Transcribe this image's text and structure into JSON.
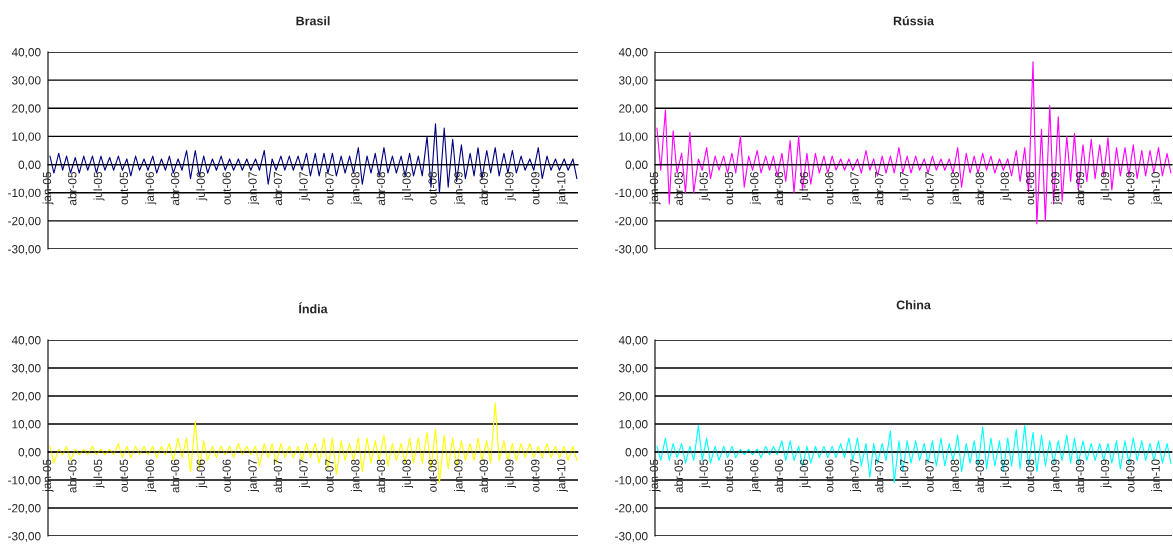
{
  "chart_data": [
    {
      "type": "line",
      "title": "Brasil",
      "ylim": [
        -30,
        40
      ],
      "grid": "y",
      "yticks": [
        {
          "value": -30,
          "label": "-30,00"
        },
        {
          "value": -20,
          "label": "-20,00"
        },
        {
          "value": -10,
          "label": "-10,00"
        },
        {
          "value": 0,
          "label": "0,00"
        },
        {
          "value": 10,
          "label": "10,00"
        },
        {
          "value": 20,
          "label": "20,00"
        },
        {
          "value": 30,
          "label": "30,00"
        },
        {
          "value": 40,
          "label": "40,00"
        }
      ],
      "xlim": [
        "2005-01-01",
        "2010-02-26"
      ],
      "xticks": [
        {
          "value": "2005-01-01",
          "label": "jan-05"
        },
        {
          "value": "2005-04-01",
          "label": "abr-05"
        },
        {
          "value": "2005-07-01",
          "label": "jul-05"
        },
        {
          "value": "2005-10-01",
          "label": "out-05"
        },
        {
          "value": "2006-01-01",
          "label": "jan-06"
        },
        {
          "value": "2006-04-01",
          "label": "abr-06"
        },
        {
          "value": "2006-07-01",
          "label": "jul-06"
        },
        {
          "value": "2006-10-01",
          "label": "out-06"
        },
        {
          "value": "2007-01-01",
          "label": "jan-07"
        },
        {
          "value": "2007-04-01",
          "label": "abr-07"
        },
        {
          "value": "2007-07-01",
          "label": "jul-07"
        },
        {
          "value": "2007-10-01",
          "label": "out-07"
        },
        {
          "value": "2008-01-01",
          "label": "jan-08"
        },
        {
          "value": "2008-04-01",
          "label": "abr-08"
        },
        {
          "value": "2008-07-01",
          "label": "jul-08"
        },
        {
          "value": "2008-10-01",
          "label": "out-08"
        },
        {
          "value": "2009-01-01",
          "label": "jan-09"
        },
        {
          "value": "2009-04-01",
          "label": "abr-09"
        },
        {
          "value": "2009-07-01",
          "label": "jul-09"
        },
        {
          "value": "2009-10-01",
          "label": "out-09"
        },
        {
          "value": "2010-01-01",
          "label": "jan-10"
        }
      ],
      "x": [
        "2005-01-08",
        "2005-01-22",
        "2005-02-08",
        "2005-02-22",
        "2005-03-08",
        "2005-03-22",
        "2005-04-08",
        "2005-04-22",
        "2005-05-08",
        "2005-05-22",
        "2005-06-08",
        "2005-06-22",
        "2005-07-08",
        "2005-07-22",
        "2005-08-08",
        "2005-08-22",
        "2005-09-08",
        "2005-09-22",
        "2005-10-08",
        "2005-10-22",
        "2005-11-08",
        "2005-11-22",
        "2005-12-08",
        "2005-12-22",
        "2006-01-08",
        "2006-01-22",
        "2006-02-08",
        "2006-02-22",
        "2006-03-08",
        "2006-03-22",
        "2006-04-08",
        "2006-04-22",
        "2006-05-08",
        "2006-05-22",
        "2006-06-08",
        "2006-06-22",
        "2006-07-08",
        "2006-07-22",
        "2006-08-08",
        "2006-08-22",
        "2006-09-08",
        "2006-09-22",
        "2006-10-08",
        "2006-10-22",
        "2006-11-08",
        "2006-11-22",
        "2006-12-08",
        "2006-12-22",
        "2007-01-08",
        "2007-01-22",
        "2007-02-08",
        "2007-02-22",
        "2007-03-08",
        "2007-03-22",
        "2007-04-08",
        "2007-04-22",
        "2007-05-08",
        "2007-05-22",
        "2007-06-08",
        "2007-06-22",
        "2007-07-08",
        "2007-07-22",
        "2007-08-08",
        "2007-08-22",
        "2007-09-08",
        "2007-09-22",
        "2007-10-08",
        "2007-10-22",
        "2007-11-08",
        "2007-11-22",
        "2007-12-08",
        "2007-12-22",
        "2008-01-08",
        "2008-01-22",
        "2008-02-08",
        "2008-02-22",
        "2008-03-08",
        "2008-03-22",
        "2008-04-08",
        "2008-04-22",
        "2008-05-08",
        "2008-05-22",
        "2008-06-08",
        "2008-06-22",
        "2008-07-08",
        "2008-07-22",
        "2008-08-08",
        "2008-08-22",
        "2008-09-08",
        "2008-09-22",
        "2008-10-08",
        "2008-10-22",
        "2008-11-08",
        "2008-11-22",
        "2008-12-08",
        "2008-12-22",
        "2009-01-08",
        "2009-01-22",
        "2009-02-08",
        "2009-02-22",
        "2009-03-08",
        "2009-03-22",
        "2009-04-08",
        "2009-04-22",
        "2009-05-08",
        "2009-05-22",
        "2009-06-08",
        "2009-06-22",
        "2009-07-08",
        "2009-07-22",
        "2009-08-08",
        "2009-08-22",
        "2009-09-08",
        "2009-09-22",
        "2009-10-08",
        "2009-10-22",
        "2009-11-08",
        "2009-11-22",
        "2009-12-08",
        "2009-12-22",
        "2010-01-08",
        "2010-01-22",
        "2010-02-08",
        "2010-02-22"
      ],
      "series": [
        {
          "color": "#000080",
          "values": [
            3,
            -3,
            4,
            -2,
            3,
            -3,
            2.5,
            -3,
            3,
            -2,
            3,
            -3,
            3,
            -2,
            2.5,
            -2,
            3,
            -2,
            2,
            -4,
            3,
            -2,
            2,
            -2,
            3,
            -3,
            2,
            -2,
            3,
            -3,
            2,
            -2,
            5,
            -5,
            5,
            -4,
            3,
            -3,
            2,
            -2,
            3,
            -2,
            2,
            -2,
            2,
            -2,
            2,
            -2,
            2,
            -2,
            5,
            -7,
            2,
            -2,
            3,
            -2,
            3,
            -2,
            3,
            -2,
            4,
            -4,
            4,
            -4,
            4,
            -3,
            4,
            -4,
            3,
            -3,
            3,
            -3,
            6,
            -7,
            3,
            -3,
            4,
            -4,
            6,
            -3,
            3,
            -3,
            3,
            -4,
            4,
            -4,
            3,
            -4,
            10,
            -8,
            14.5,
            -10,
            13,
            -8,
            9,
            -6,
            7,
            -5,
            4,
            -4,
            6,
            -5,
            5,
            -3,
            6,
            -4,
            4,
            -3,
            5,
            -3,
            3,
            -2,
            2,
            -2,
            6,
            -5,
            3,
            -2,
            2,
            -2,
            2,
            -2,
            2,
            -5
          ]
        }
      ]
    },
    {
      "type": "line",
      "title": "Rússia",
      "ylim": [
        -30,
        40
      ],
      "grid": "y",
      "yticks": [
        {
          "value": -30,
          "label": "-30,00"
        },
        {
          "value": -20,
          "label": "-20,00"
        },
        {
          "value": -10,
          "label": "-10,00"
        },
        {
          "value": 0,
          "label": "0,00"
        },
        {
          "value": 10,
          "label": "10,00"
        },
        {
          "value": 20,
          "label": "20,00"
        },
        {
          "value": 30,
          "label": "30,00"
        },
        {
          "value": 40,
          "label": "40,00"
        }
      ],
      "xlim": [
        "2005-01-01",
        "2010-02-26"
      ],
      "xticks": [
        {
          "value": "2005-01-01",
          "label": "jan-05"
        },
        {
          "value": "2005-04-01",
          "label": "abr-05"
        },
        {
          "value": "2005-07-01",
          "label": "jul-05"
        },
        {
          "value": "2005-10-01",
          "label": "out-05"
        },
        {
          "value": "2006-01-01",
          "label": "jan-06"
        },
        {
          "value": "2006-04-01",
          "label": "abr-06"
        },
        {
          "value": "2006-07-01",
          "label": "jul-06"
        },
        {
          "value": "2006-10-01",
          "label": "out-06"
        },
        {
          "value": "2007-01-01",
          "label": "jan-07"
        },
        {
          "value": "2007-04-01",
          "label": "abr-07"
        },
        {
          "value": "2007-07-01",
          "label": "jul-07"
        },
        {
          "value": "2007-10-01",
          "label": "out-07"
        },
        {
          "value": "2008-01-01",
          "label": "jan-08"
        },
        {
          "value": "2008-04-01",
          "label": "abr-08"
        },
        {
          "value": "2008-07-01",
          "label": "jul-08"
        },
        {
          "value": "2008-10-01",
          "label": "out-08"
        },
        {
          "value": "2009-01-01",
          "label": "jan-09"
        },
        {
          "value": "2009-04-01",
          "label": "abr-09"
        },
        {
          "value": "2009-07-01",
          "label": "jul-09"
        },
        {
          "value": "2009-10-01",
          "label": "out-09"
        },
        {
          "value": "2010-01-01",
          "label": "jan-10"
        }
      ],
      "x": [
        "2005-01-08",
        "2005-01-22",
        "2005-02-08",
        "2005-02-22",
        "2005-03-08",
        "2005-03-22",
        "2005-04-08",
        "2005-04-22",
        "2005-05-08",
        "2005-05-22",
        "2005-06-08",
        "2005-06-22",
        "2005-07-08",
        "2005-07-22",
        "2005-08-08",
        "2005-08-22",
        "2005-09-08",
        "2005-09-22",
        "2005-10-08",
        "2005-10-22",
        "2005-11-08",
        "2005-11-22",
        "2005-12-08",
        "2005-12-22",
        "2006-01-08",
        "2006-01-22",
        "2006-02-08",
        "2006-02-22",
        "2006-03-08",
        "2006-03-22",
        "2006-04-08",
        "2006-04-22",
        "2006-05-08",
        "2006-05-22",
        "2006-06-08",
        "2006-06-22",
        "2006-07-08",
        "2006-07-22",
        "2006-08-08",
        "2006-08-22",
        "2006-09-08",
        "2006-09-22",
        "2006-10-08",
        "2006-10-22",
        "2006-11-08",
        "2006-11-22",
        "2006-12-08",
        "2006-12-22",
        "2007-01-08",
        "2007-01-22",
        "2007-02-08",
        "2007-02-22",
        "2007-03-08",
        "2007-03-22",
        "2007-04-08",
        "2007-04-22",
        "2007-05-08",
        "2007-05-22",
        "2007-06-08",
        "2007-06-22",
        "2007-07-08",
        "2007-07-22",
        "2007-08-08",
        "2007-08-22",
        "2007-09-08",
        "2007-09-22",
        "2007-10-08",
        "2007-10-22",
        "2007-11-08",
        "2007-11-22",
        "2007-12-08",
        "2007-12-22",
        "2008-01-08",
        "2008-01-22",
        "2008-02-08",
        "2008-02-22",
        "2008-03-08",
        "2008-03-22",
        "2008-04-08",
        "2008-04-22",
        "2008-05-08",
        "2008-05-22",
        "2008-06-08",
        "2008-06-22",
        "2008-07-08",
        "2008-07-22",
        "2008-08-08",
        "2008-08-22",
        "2008-09-08",
        "2008-09-22",
        "2008-10-08",
        "2008-10-22",
        "2008-11-08",
        "2008-11-22",
        "2008-12-08",
        "2008-12-22",
        "2009-01-08",
        "2009-01-22",
        "2009-02-08",
        "2009-02-22",
        "2009-03-08",
        "2009-03-22",
        "2009-04-08",
        "2009-04-22",
        "2009-05-08",
        "2009-05-22",
        "2009-06-08",
        "2009-06-22",
        "2009-07-08",
        "2009-07-22",
        "2009-08-08",
        "2009-08-22",
        "2009-09-08",
        "2009-09-22",
        "2009-10-08",
        "2009-10-22",
        "2009-11-08",
        "2009-11-22",
        "2009-12-08",
        "2009-12-22",
        "2010-01-08",
        "2010-01-22",
        "2010-02-08",
        "2010-02-22"
      ],
      "series": [
        {
          "color": "#ff00ff",
          "values": [
            13,
            -2,
            19.5,
            -14,
            12,
            -3,
            4,
            -10,
            11.5,
            -10,
            2,
            -2,
            6,
            -5,
            3,
            -2,
            3,
            -3,
            4,
            -3,
            10,
            -8,
            3,
            -2,
            5,
            -3,
            3,
            -2,
            3,
            -4,
            4,
            -6,
            8.5,
            -10,
            10,
            -9,
            4,
            -7,
            4,
            -3,
            3,
            -3,
            3,
            -2,
            2,
            -2,
            2,
            -2,
            2,
            -3,
            5,
            -2,
            2,
            -4,
            3,
            -3,
            3,
            -3,
            6,
            -3,
            3,
            -3,
            3,
            -2,
            2,
            -3,
            3,
            -2,
            2,
            -2,
            2,
            -3,
            6,
            -8,
            4,
            -3,
            3,
            -3,
            4,
            -2,
            3,
            -3,
            2,
            -2,
            2,
            -4,
            5,
            -6,
            6,
            -10,
            36.5,
            -21,
            12.5,
            -20,
            21,
            -14,
            17,
            -13,
            10,
            -6,
            11,
            -9,
            7,
            -6,
            9,
            -5,
            7,
            -4,
            9.5,
            -9,
            6,
            -4,
            6,
            -4,
            7,
            -5,
            5,
            -4,
            5,
            -3,
            6,
            -4,
            4,
            -3
          ]
        }
      ]
    },
    {
      "type": "line",
      "title": "Índia",
      "ylim": [
        -30,
        40
      ],
      "grid": "y",
      "yticks": [
        {
          "value": -30,
          "label": "-30,00"
        },
        {
          "value": -20,
          "label": "-20,00"
        },
        {
          "value": -10,
          "label": "-10,00"
        },
        {
          "value": 0,
          "label": "0,00"
        },
        {
          "value": 10,
          "label": "10,00"
        },
        {
          "value": 20,
          "label": "20,00"
        },
        {
          "value": 30,
          "label": "30,00"
        },
        {
          "value": 40,
          "label": "40,00"
        }
      ],
      "xlim": [
        "2005-01-01",
        "2010-02-26"
      ],
      "xticks": [
        {
          "value": "2005-01-01",
          "label": "jan-05"
        },
        {
          "value": "2005-04-01",
          "label": "abr-05"
        },
        {
          "value": "2005-07-01",
          "label": "jul-05"
        },
        {
          "value": "2005-10-01",
          "label": "out-05"
        },
        {
          "value": "2006-01-01",
          "label": "jan-06"
        },
        {
          "value": "2006-04-01",
          "label": "abr-06"
        },
        {
          "value": "2006-07-01",
          "label": "jul-06"
        },
        {
          "value": "2006-10-01",
          "label": "out-06"
        },
        {
          "value": "2007-01-01",
          "label": "jan-07"
        },
        {
          "value": "2007-04-01",
          "label": "abr-07"
        },
        {
          "value": "2007-07-01",
          "label": "jul-07"
        },
        {
          "value": "2007-10-01",
          "label": "out-07"
        },
        {
          "value": "2008-01-01",
          "label": "jan-08"
        },
        {
          "value": "2008-04-01",
          "label": "abr-08"
        },
        {
          "value": "2008-07-01",
          "label": "jul-08"
        },
        {
          "value": "2008-10-01",
          "label": "out-08"
        },
        {
          "value": "2009-01-01",
          "label": "jan-09"
        },
        {
          "value": "2009-04-01",
          "label": "abr-09"
        },
        {
          "value": "2009-07-01",
          "label": "jul-09"
        },
        {
          "value": "2009-10-01",
          "label": "out-09"
        },
        {
          "value": "2010-01-01",
          "label": "jan-10"
        }
      ],
      "x": [
        "2005-01-08",
        "2005-01-22",
        "2005-02-08",
        "2005-02-22",
        "2005-03-08",
        "2005-03-22",
        "2005-04-08",
        "2005-04-22",
        "2005-05-08",
        "2005-05-22",
        "2005-06-08",
        "2005-06-22",
        "2005-07-08",
        "2005-07-22",
        "2005-08-08",
        "2005-08-22",
        "2005-09-08",
        "2005-09-22",
        "2005-10-08",
        "2005-10-22",
        "2005-11-08",
        "2005-11-22",
        "2005-12-08",
        "2005-12-22",
        "2006-01-08",
        "2006-01-22",
        "2006-02-08",
        "2006-02-22",
        "2006-03-08",
        "2006-03-22",
        "2006-04-08",
        "2006-04-22",
        "2006-05-08",
        "2006-05-22",
        "2006-06-08",
        "2006-06-22",
        "2006-07-08",
        "2006-07-22",
        "2006-08-08",
        "2006-08-22",
        "2006-09-08",
        "2006-09-22",
        "2006-10-08",
        "2006-10-22",
        "2006-11-08",
        "2006-11-22",
        "2006-12-08",
        "2006-12-22",
        "2007-01-08",
        "2007-01-22",
        "2007-02-08",
        "2007-02-22",
        "2007-03-08",
        "2007-03-22",
        "2007-04-08",
        "2007-04-22",
        "2007-05-08",
        "2007-05-22",
        "2007-06-08",
        "2007-06-22",
        "2007-07-08",
        "2007-07-22",
        "2007-08-08",
        "2007-08-22",
        "2007-09-08",
        "2007-09-22",
        "2007-10-08",
        "2007-10-22",
        "2007-11-08",
        "2007-11-22",
        "2007-12-08",
        "2007-12-22",
        "2008-01-08",
        "2008-01-22",
        "2008-02-08",
        "2008-02-22",
        "2008-03-08",
        "2008-03-22",
        "2008-04-08",
        "2008-04-22",
        "2008-05-08",
        "2008-05-22",
        "2008-06-08",
        "2008-06-22",
        "2008-07-08",
        "2008-07-22",
        "2008-08-08",
        "2008-08-22",
        "2008-09-08",
        "2008-09-22",
        "2008-10-08",
        "2008-10-22",
        "2008-11-08",
        "2008-11-22",
        "2008-12-08",
        "2008-12-22",
        "2009-01-08",
        "2009-01-22",
        "2009-02-08",
        "2009-02-22",
        "2009-03-08",
        "2009-03-22",
        "2009-04-08",
        "2009-04-22",
        "2009-05-08",
        "2009-05-22",
        "2009-06-08",
        "2009-06-22",
        "2009-07-08",
        "2009-07-22",
        "2009-08-08",
        "2009-08-22",
        "2009-09-08",
        "2009-09-22",
        "2009-10-08",
        "2009-10-22",
        "2009-11-08",
        "2009-11-22",
        "2009-12-08",
        "2009-12-22",
        "2010-01-08",
        "2010-01-22",
        "2010-02-08",
        "2010-02-22"
      ],
      "series": [
        {
          "color": "#ffff00",
          "values": [
            2,
            -4,
            1,
            -1,
            2,
            -3,
            1,
            -1,
            1,
            -1,
            2,
            -1,
            1,
            -1,
            1,
            -1,
            3,
            -2,
            2,
            -2,
            2,
            -1,
            2,
            -1,
            2,
            -2,
            2,
            -1,
            3,
            -3,
            5,
            -2,
            5,
            -7,
            11,
            -6,
            4,
            -3,
            2,
            -2,
            2,
            -1,
            2,
            -2,
            3,
            -1,
            2,
            -1,
            2,
            -5,
            3,
            -2,
            3,
            -4,
            3,
            -2,
            2,
            -2,
            2,
            -3,
            3,
            -2,
            3,
            -4,
            5,
            -6,
            5,
            -8,
            4,
            -3,
            3,
            -3,
            5,
            -7,
            5,
            -4,
            4,
            -3,
            6,
            -5,
            3,
            -3,
            3,
            -4,
            5,
            -4,
            5,
            -4,
            7,
            -6,
            8,
            -11,
            6,
            -6,
            5,
            -5,
            4,
            -3,
            3,
            -3,
            5,
            -3,
            4,
            -4,
            17.5,
            -3,
            4,
            -3,
            3,
            -3,
            3,
            -2,
            3,
            -2,
            2,
            -2,
            3,
            -2,
            2,
            -2,
            2,
            -3,
            2,
            -3
          ]
        }
      ]
    },
    {
      "type": "line",
      "title": "China",
      "ylim": [
        -30,
        40
      ],
      "grid": "y",
      "yticks": [
        {
          "value": -30,
          "label": "-30,00"
        },
        {
          "value": -20,
          "label": "-20,00"
        },
        {
          "value": -10,
          "label": "-10,00"
        },
        {
          "value": 0,
          "label": "0,00"
        },
        {
          "value": 10,
          "label": "10,00"
        },
        {
          "value": 20,
          "label": "20,00"
        },
        {
          "value": 30,
          "label": "30,00"
        },
        {
          "value": 40,
          "label": "40,00"
        }
      ],
      "xlim": [
        "2005-01-01",
        "2010-02-26"
      ],
      "xticks": [
        {
          "value": "2005-01-01",
          "label": "jan-05"
        },
        {
          "value": "2005-04-01",
          "label": "abr-05"
        },
        {
          "value": "2005-07-01",
          "label": "jul-05"
        },
        {
          "value": "2005-10-01",
          "label": "out-05"
        },
        {
          "value": "2006-01-01",
          "label": "jan-06"
        },
        {
          "value": "2006-04-01",
          "label": "abr-06"
        },
        {
          "value": "2006-07-01",
          "label": "jul-06"
        },
        {
          "value": "2006-10-01",
          "label": "out-06"
        },
        {
          "value": "2007-01-01",
          "label": "jan-07"
        },
        {
          "value": "2007-04-01",
          "label": "abr-07"
        },
        {
          "value": "2007-07-01",
          "label": "jul-07"
        },
        {
          "value": "2007-10-01",
          "label": "out-07"
        },
        {
          "value": "2008-01-01",
          "label": "jan-08"
        },
        {
          "value": "2008-04-01",
          "label": "abr-08"
        },
        {
          "value": "2008-07-01",
          "label": "jul-08"
        },
        {
          "value": "2008-10-01",
          "label": "out-08"
        },
        {
          "value": "2009-01-01",
          "label": "jan-09"
        },
        {
          "value": "2009-04-01",
          "label": "abr-09"
        },
        {
          "value": "2009-07-01",
          "label": "jul-09"
        },
        {
          "value": "2009-10-01",
          "label": "out-09"
        },
        {
          "value": "2010-01-01",
          "label": "jan-10"
        }
      ],
      "x": [
        "2005-01-08",
        "2005-01-22",
        "2005-02-08",
        "2005-02-22",
        "2005-03-08",
        "2005-03-22",
        "2005-04-08",
        "2005-04-22",
        "2005-05-08",
        "2005-05-22",
        "2005-06-08",
        "2005-06-22",
        "2005-07-08",
        "2005-07-22",
        "2005-08-08",
        "2005-08-22",
        "2005-09-08",
        "2005-09-22",
        "2005-10-08",
        "2005-10-22",
        "2005-11-08",
        "2005-11-22",
        "2005-12-08",
        "2005-12-22",
        "2006-01-08",
        "2006-01-22",
        "2006-02-08",
        "2006-02-22",
        "2006-03-08",
        "2006-03-22",
        "2006-04-08",
        "2006-04-22",
        "2006-05-08",
        "2006-05-22",
        "2006-06-08",
        "2006-06-22",
        "2006-07-08",
        "2006-07-22",
        "2006-08-08",
        "2006-08-22",
        "2006-09-08",
        "2006-09-22",
        "2006-10-08",
        "2006-10-22",
        "2006-11-08",
        "2006-11-22",
        "2006-12-08",
        "2006-12-22",
        "2007-01-08",
        "2007-01-22",
        "2007-02-08",
        "2007-02-22",
        "2007-03-08",
        "2007-03-22",
        "2007-04-08",
        "2007-04-22",
        "2007-05-08",
        "2007-05-22",
        "2007-06-08",
        "2007-06-22",
        "2007-07-08",
        "2007-07-22",
        "2007-08-08",
        "2007-08-22",
        "2007-09-08",
        "2007-09-22",
        "2007-10-08",
        "2007-10-22",
        "2007-11-08",
        "2007-11-22",
        "2007-12-08",
        "2007-12-22",
        "2008-01-08",
        "2008-01-22",
        "2008-02-08",
        "2008-02-22",
        "2008-03-08",
        "2008-03-22",
        "2008-04-08",
        "2008-04-22",
        "2008-05-08",
        "2008-05-22",
        "2008-06-08",
        "2008-06-22",
        "2008-07-08",
        "2008-07-22",
        "2008-08-08",
        "2008-08-22",
        "2008-09-08",
        "2008-09-22",
        "2008-10-08",
        "2008-10-22",
        "2008-11-08",
        "2008-11-22",
        "2008-12-08",
        "2008-12-22",
        "2009-01-08",
        "2009-01-22",
        "2009-02-08",
        "2009-02-22",
        "2009-03-08",
        "2009-03-22",
        "2009-04-08",
        "2009-04-22",
        "2009-05-08",
        "2009-05-22",
        "2009-06-08",
        "2009-06-22",
        "2009-07-08",
        "2009-07-22",
        "2009-08-08",
        "2009-08-22",
        "2009-09-08",
        "2009-09-22",
        "2009-10-08",
        "2009-10-22",
        "2009-11-08",
        "2009-11-22",
        "2009-12-08",
        "2009-12-22",
        "2010-01-08",
        "2010-01-22",
        "2010-02-08",
        "2010-02-22"
      ],
      "series": [
        {
          "color": "#00ffff",
          "values": [
            2,
            -3,
            5,
            -3,
            3,
            -2,
            3,
            -4,
            2,
            -3,
            9.5,
            -3,
            5,
            -4,
            2,
            -3,
            2,
            -2,
            2,
            -2,
            1,
            -1,
            1,
            -1,
            1,
            -2,
            2,
            -1,
            2,
            -1,
            4,
            -3,
            4,
            -3,
            2,
            -5,
            2,
            -4,
            2,
            -2,
            2,
            -2,
            2,
            -2,
            3,
            -2,
            5,
            -3,
            5,
            -5,
            3,
            -9,
            3,
            -4,
            3,
            -3,
            7.5,
            -11,
            4,
            -7,
            4,
            -4,
            4,
            -3,
            3,
            -4,
            4,
            -5,
            5,
            -5,
            3,
            -3,
            6,
            -7,
            3,
            -4,
            4,
            -5,
            9,
            -6,
            5,
            -5,
            4,
            -7,
            5,
            -5,
            8,
            -6,
            9.5,
            -5,
            7,
            -7,
            6,
            -5,
            4,
            -4,
            4,
            -3,
            6,
            -4,
            5,
            -4,
            4,
            -3,
            3,
            -3,
            3,
            -3,
            3,
            -4,
            4,
            -6,
            4,
            -4,
            5,
            -3,
            4,
            -3,
            3,
            -3,
            4,
            -4,
            3,
            -4
          ]
        }
      ]
    }
  ]
}
